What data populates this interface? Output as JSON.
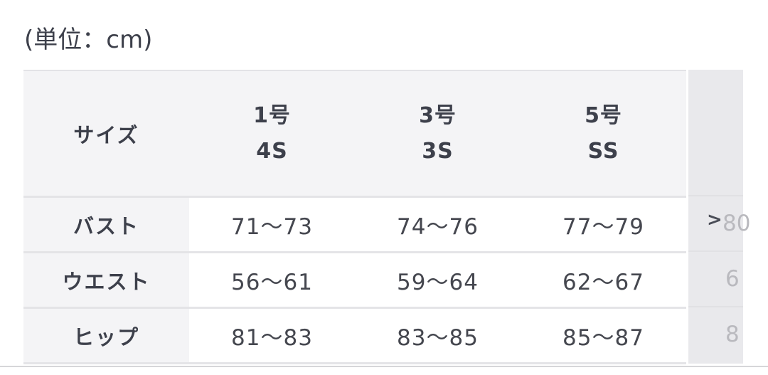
{
  "unit_label": "(単位：cm)",
  "table": {
    "header": {
      "label": "サイズ",
      "columns": [
        {
          "size": "1号",
          "alias": "4S"
        },
        {
          "size": "3号",
          "alias": "3S"
        },
        {
          "size": "5号",
          "alias": "SS"
        }
      ]
    },
    "rows": [
      {
        "label": "バスト",
        "values": [
          "71〜73",
          "74〜76",
          "77〜79"
        ],
        "next_partial": "80"
      },
      {
        "label": "ウエスト",
        "values": [
          "56〜61",
          "59〜64",
          "62〜67"
        ],
        "next_partial": "6"
      },
      {
        "label": "ヒップ",
        "values": [
          "81〜83",
          "83〜85",
          "85〜87"
        ],
        "next_partial": "8"
      }
    ],
    "scroll_icon": "chevron-right-icon"
  }
}
